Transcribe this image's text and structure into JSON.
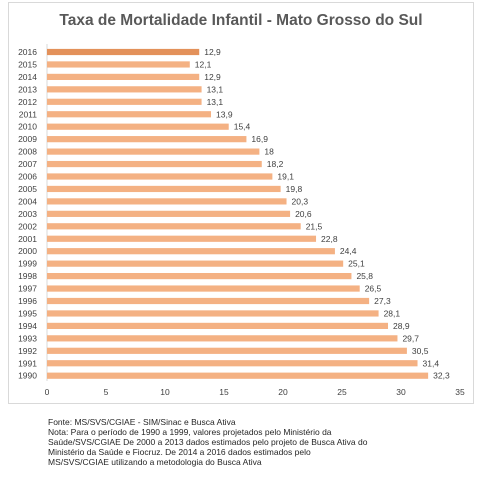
{
  "chart_data": {
    "type": "bar",
    "orientation": "horizontal",
    "title": "Taxa de Mortalidade Infantil - Mato Grosso do Sul",
    "categories": [
      "2016",
      "2015",
      "2014",
      "2013",
      "2012",
      "2011",
      "2010",
      "2009",
      "2008",
      "2007",
      "2006",
      "2005",
      "2004",
      "2003",
      "2002",
      "2001",
      "2000",
      "1999",
      "1998",
      "1997",
      "1996",
      "1995",
      "1994",
      "1993",
      "1992",
      "1991",
      "1990"
    ],
    "values": [
      12.9,
      12.1,
      12.9,
      13.1,
      13.1,
      13.9,
      15.4,
      16.9,
      18,
      18.2,
      19.1,
      19.8,
      20.3,
      20.6,
      21.5,
      22.8,
      24.4,
      25.1,
      25.8,
      26.5,
      27.3,
      28.1,
      28.9,
      29.7,
      30.5,
      31.4,
      32.3
    ],
    "value_labels": [
      "12,9",
      "12,1",
      "12,9",
      "13,1",
      "13,1",
      "13,9",
      "15,4",
      "16,9",
      "18",
      "18,2",
      "19,1",
      "19,8",
      "20,3",
      "20,6",
      "21,5",
      "22,8",
      "24,4",
      "25,1",
      "25,8",
      "26,5",
      "27,3",
      "28,1",
      "28,9",
      "29,7",
      "30,5",
      "31,4",
      "32,3"
    ],
    "highlight_category": "2016",
    "xlim": [
      0,
      35
    ],
    "xticks": [
      0,
      5,
      10,
      15,
      20,
      25,
      30,
      35
    ],
    "xlabel": "",
    "ylabel": "",
    "grid": false,
    "legend": "none",
    "colors": {
      "bar": "#f4b183",
      "bar_highlight": "#e3915a",
      "text": "#404040",
      "axis": "#d9d9d9"
    }
  },
  "notes": {
    "source": "Fonte: MS/SVS/CGIAE - SIM/Sinac e Busca Ativa",
    "lines": [
      "Nota: Para o período de 1990 a 1999, valores projetados pelo Ministério da",
      "Saúde/SVS/CGIAE   De 2000 a 2013 dados estimados pelo projeto de Busca Ativa do",
      "Ministério da Saúde e Fiocruz. De 2014 a 2016 dados estimados pelo",
      "MS/SVS/CGIAE utilizando a metodologia do Busca Ativa"
    ]
  }
}
